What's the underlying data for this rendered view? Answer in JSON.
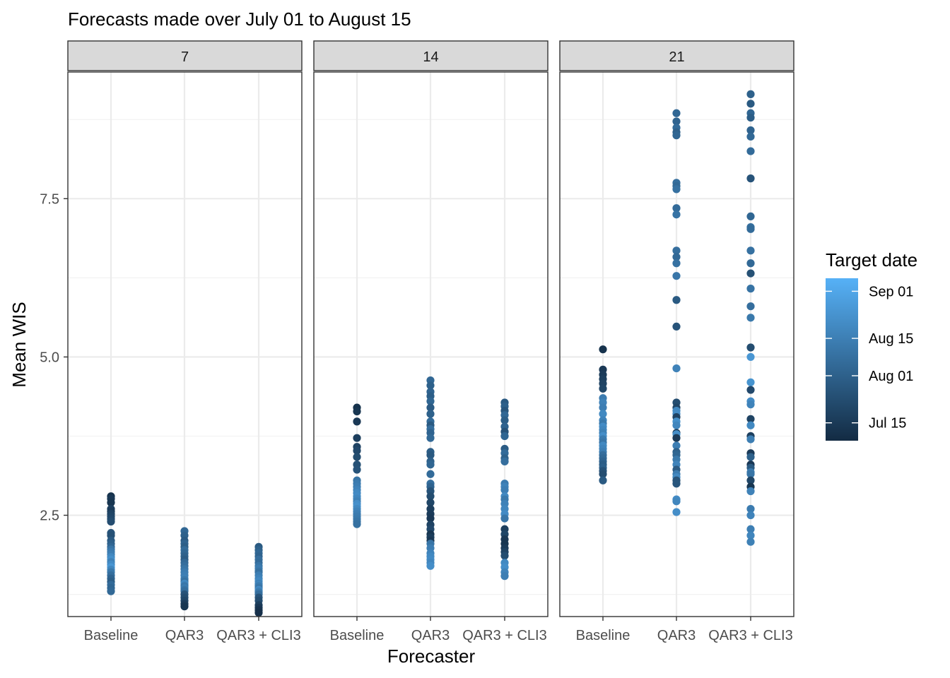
{
  "chart_data": {
    "type": "scatter",
    "title": "Forecasts made over July 01 to August 15",
    "xlabel": "Forecaster",
    "ylabel": "Mean WIS",
    "ylim": [
      0.9,
      9.5
    ],
    "yticks": [
      2.5,
      5.0,
      7.5
    ],
    "ytick_labels": [
      "2.5",
      "5.0",
      "7.5"
    ],
    "grid": true,
    "categories": [
      "Baseline",
      "QAR3",
      "QAR3 + CLI3"
    ],
    "facet_label": "",
    "facets": [
      {
        "label": "7",
        "series": [
          {
            "category": "Baseline",
            "values": [
              2.8,
              2.76,
              2.7,
              2.6,
              2.56,
              2.52,
              2.48,
              2.44,
              2.4,
              2.22,
              2.18,
              2.1,
              2.05,
              2.0,
              1.96,
              1.92,
              1.88,
              1.84,
              1.8,
              1.76,
              1.72,
              1.68,
              1.64,
              1.6,
              1.55,
              1.5,
              1.45,
              1.4,
              1.35,
              1.3
            ],
            "dates": [
              0.05,
              0.1,
              0.08,
              0.15,
              0.12,
              0.18,
              0.2,
              0.22,
              0.25,
              0.3,
              0.28,
              0.35,
              0.4,
              0.45,
              0.55,
              0.6,
              0.62,
              0.7,
              0.75,
              0.65,
              0.72,
              0.8,
              0.68,
              0.58,
              0.5,
              0.42,
              0.38,
              0.48,
              0.44,
              0.46
            ]
          },
          {
            "category": "QAR3",
            "values": [
              2.25,
              2.18,
              2.1,
              2.05,
              2.0,
              1.95,
              1.9,
              1.85,
              1.8,
              1.75,
              1.7,
              1.65,
              1.6,
              1.55,
              1.5,
              1.48,
              1.45,
              1.42,
              1.4,
              1.38,
              1.35,
              1.32,
              1.3,
              1.25,
              1.2,
              1.15,
              1.1,
              1.06
            ],
            "dates": [
              0.45,
              0.4,
              0.35,
              0.42,
              0.38,
              0.48,
              0.44,
              0.4,
              0.36,
              0.46,
              0.5,
              0.55,
              0.6,
              0.62,
              0.65,
              0.58,
              0.52,
              0.7,
              0.66,
              0.56,
              0.6,
              0.54,
              0.5,
              0.3,
              0.25,
              0.2,
              0.12,
              0.08
            ]
          },
          {
            "category": "QAR3 + CLI3",
            "values": [
              2.0,
              1.95,
              1.9,
              1.85,
              1.8,
              1.75,
              1.7,
              1.66,
              1.62,
              1.6,
              1.55,
              1.5,
              1.46,
              1.42,
              1.4,
              1.38,
              1.35,
              1.32,
              1.3,
              1.28,
              1.25,
              1.2,
              1.15,
              1.08,
              1.04,
              1.0,
              0.96
            ],
            "dates": [
              0.35,
              0.4,
              0.45,
              0.42,
              0.5,
              0.48,
              0.55,
              0.6,
              0.58,
              0.52,
              0.62,
              0.66,
              0.7,
              0.64,
              0.68,
              0.6,
              0.56,
              0.72,
              0.65,
              0.58,
              0.5,
              0.3,
              0.25,
              0.15,
              0.1,
              0.06,
              0.04
            ]
          }
        ]
      },
      {
        "label": "14",
        "series": [
          {
            "category": "Baseline",
            "values": [
              4.2,
              4.14,
              3.98,
              3.72,
              3.58,
              3.52,
              3.42,
              3.3,
              3.22,
              3.05,
              3.0,
              2.95,
              2.9,
              2.85,
              2.8,
              2.76,
              2.72,
              2.68,
              2.64,
              2.6,
              2.56,
              2.52,
              2.48,
              2.44,
              2.4,
              2.36
            ],
            "dates": [
              0.05,
              0.08,
              0.1,
              0.15,
              0.18,
              0.22,
              0.25,
              0.28,
              0.3,
              0.55,
              0.6,
              0.62,
              0.66,
              0.7,
              0.72,
              0.68,
              0.64,
              0.74,
              0.76,
              0.7,
              0.66,
              0.62,
              0.6,
              0.58,
              0.55,
              0.52
            ]
          },
          {
            "category": "QAR3",
            "values": [
              4.63,
              4.55,
              4.45,
              4.38,
              4.3,
              4.2,
              4.1,
              3.98,
              3.92,
              3.86,
              3.8,
              3.72,
              3.5,
              3.45,
              3.35,
              3.3,
              3.15,
              3.0,
              2.95,
              2.88,
              2.8,
              2.7,
              2.6,
              2.52,
              2.45,
              2.35,
              2.28,
              2.2,
              2.15,
              2.1,
              2.05,
              1.98,
              1.9,
              1.85,
              1.8,
              1.75,
              1.7
            ],
            "dates": [
              0.45,
              0.4,
              0.42,
              0.38,
              0.44,
              0.36,
              0.4,
              0.48,
              0.35,
              0.5,
              0.42,
              0.46,
              0.38,
              0.34,
              0.4,
              0.44,
              0.48,
              0.5,
              0.42,
              0.3,
              0.25,
              0.2,
              0.15,
              0.12,
              0.1,
              0.18,
              0.22,
              0.08,
              0.14,
              0.1,
              0.55,
              0.62,
              0.66,
              0.7,
              0.72,
              0.68,
              0.74
            ]
          },
          {
            "category": "QAR3 + CLI3",
            "values": [
              4.28,
              4.22,
              4.15,
              4.08,
              4.0,
              3.9,
              3.82,
              3.75,
              3.55,
              3.48,
              3.4,
              3.35,
              3.0,
              2.95,
              2.9,
              2.8,
              2.75,
              2.68,
              2.6,
              2.52,
              2.45,
              2.28,
              2.2,
              2.12,
              2.05,
              1.98,
              1.92,
              1.86,
              1.75,
              1.68,
              1.6,
              1.54
            ],
            "dates": [
              0.35,
              0.4,
              0.32,
              0.45,
              0.38,
              0.42,
              0.3,
              0.44,
              0.36,
              0.48,
              0.4,
              0.5,
              0.6,
              0.66,
              0.62,
              0.7,
              0.58,
              0.65,
              0.68,
              0.72,
              0.56,
              0.15,
              0.2,
              0.1,
              0.08,
              0.12,
              0.18,
              0.25,
              0.7,
              0.74,
              0.66,
              0.62
            ]
          }
        ]
      },
      {
        "label": "21",
        "series": [
          {
            "category": "Baseline",
            "values": [
              5.12,
              4.8,
              4.72,
              4.65,
              4.58,
              4.5,
              4.35,
              4.28,
              4.2,
              4.1,
              4.0,
              3.95,
              3.9,
              3.85,
              3.8,
              3.75,
              3.7,
              3.65,
              3.6,
              3.55,
              3.5,
              3.45,
              3.4,
              3.35,
              3.3,
              3.25,
              3.2,
              3.15,
              3.05
            ],
            "dates": [
              0.05,
              0.1,
              0.12,
              0.15,
              0.18,
              0.2,
              0.6,
              0.65,
              0.62,
              0.7,
              0.66,
              0.58,
              0.72,
              0.68,
              0.64,
              0.74,
              0.6,
              0.56,
              0.7,
              0.66,
              0.62,
              0.5,
              0.46,
              0.42,
              0.38,
              0.4,
              0.3,
              0.25,
              0.35
            ]
          },
          {
            "category": "QAR3",
            "values": [
              8.85,
              8.72,
              8.62,
              8.55,
              8.5,
              7.75,
              7.7,
              7.65,
              7.35,
              7.25,
              6.68,
              6.58,
              6.48,
              6.28,
              5.9,
              5.48,
              4.82,
              4.28,
              4.2,
              4.15,
              4.1,
              4.05,
              3.98,
              3.92,
              3.8,
              3.78,
              3.72,
              3.6,
              3.5,
              3.45,
              3.38,
              3.3,
              3.22,
              3.15,
              3.1,
              3.05,
              3.0,
              2.75,
              2.72,
              2.55
            ],
            "dates": [
              0.45,
              0.42,
              0.48,
              0.4,
              0.44,
              0.5,
              0.46,
              0.52,
              0.48,
              0.54,
              0.5,
              0.46,
              0.52,
              0.56,
              0.35,
              0.3,
              0.65,
              0.25,
              0.2,
              0.7,
              0.72,
              0.18,
              0.75,
              0.68,
              0.15,
              0.74,
              0.12,
              0.62,
              0.4,
              0.44,
              0.58,
              0.66,
              0.36,
              0.6,
              0.7,
              0.3,
              0.32,
              0.72,
              0.68,
              0.74
            ]
          },
          {
            "category": "QAR3 + CLI3",
            "values": [
              9.15,
              9.0,
              8.85,
              8.78,
              8.58,
              8.48,
              8.25,
              7.82,
              7.22,
              7.05,
              7.02,
              6.68,
              6.48,
              6.32,
              6.08,
              5.8,
              5.62,
              5.15,
              5.0,
              4.6,
              4.48,
              4.3,
              4.25,
              4.02,
              3.92,
              3.75,
              3.7,
              3.48,
              3.42,
              3.3,
              3.25,
              3.18,
              3.15,
              3.05,
              2.95,
              2.88,
              2.6,
              2.5,
              2.28,
              2.18,
              2.08
            ],
            "dates": [
              0.4,
              0.35,
              0.44,
              0.38,
              0.42,
              0.46,
              0.48,
              0.3,
              0.44,
              0.5,
              0.48,
              0.52,
              0.46,
              0.28,
              0.54,
              0.5,
              0.58,
              0.25,
              0.8,
              0.78,
              0.22,
              0.72,
              0.66,
              0.18,
              0.7,
              0.15,
              0.62,
              0.12,
              0.4,
              0.1,
              0.35,
              0.6,
              0.55,
              0.2,
              0.08,
              0.65,
              0.6,
              0.66,
              0.62,
              0.68,
              0.64
            ]
          }
        ]
      }
    ],
    "legend": {
      "title": "Target date",
      "position": "right",
      "labels": [
        "Sep 01",
        "Aug 15",
        "Aug 01",
        "Jul 15"
      ],
      "label_positions": [
        0.92,
        0.63,
        0.4,
        0.11
      ],
      "color_low": "#132B43",
      "color_high": "#56B1F7"
    },
    "colors": {
      "panel_border": "#333333",
      "strip_fill": "#d9d9d9",
      "grid_major": "#ebebeb",
      "grid_minor": "#f2f2f2"
    }
  }
}
